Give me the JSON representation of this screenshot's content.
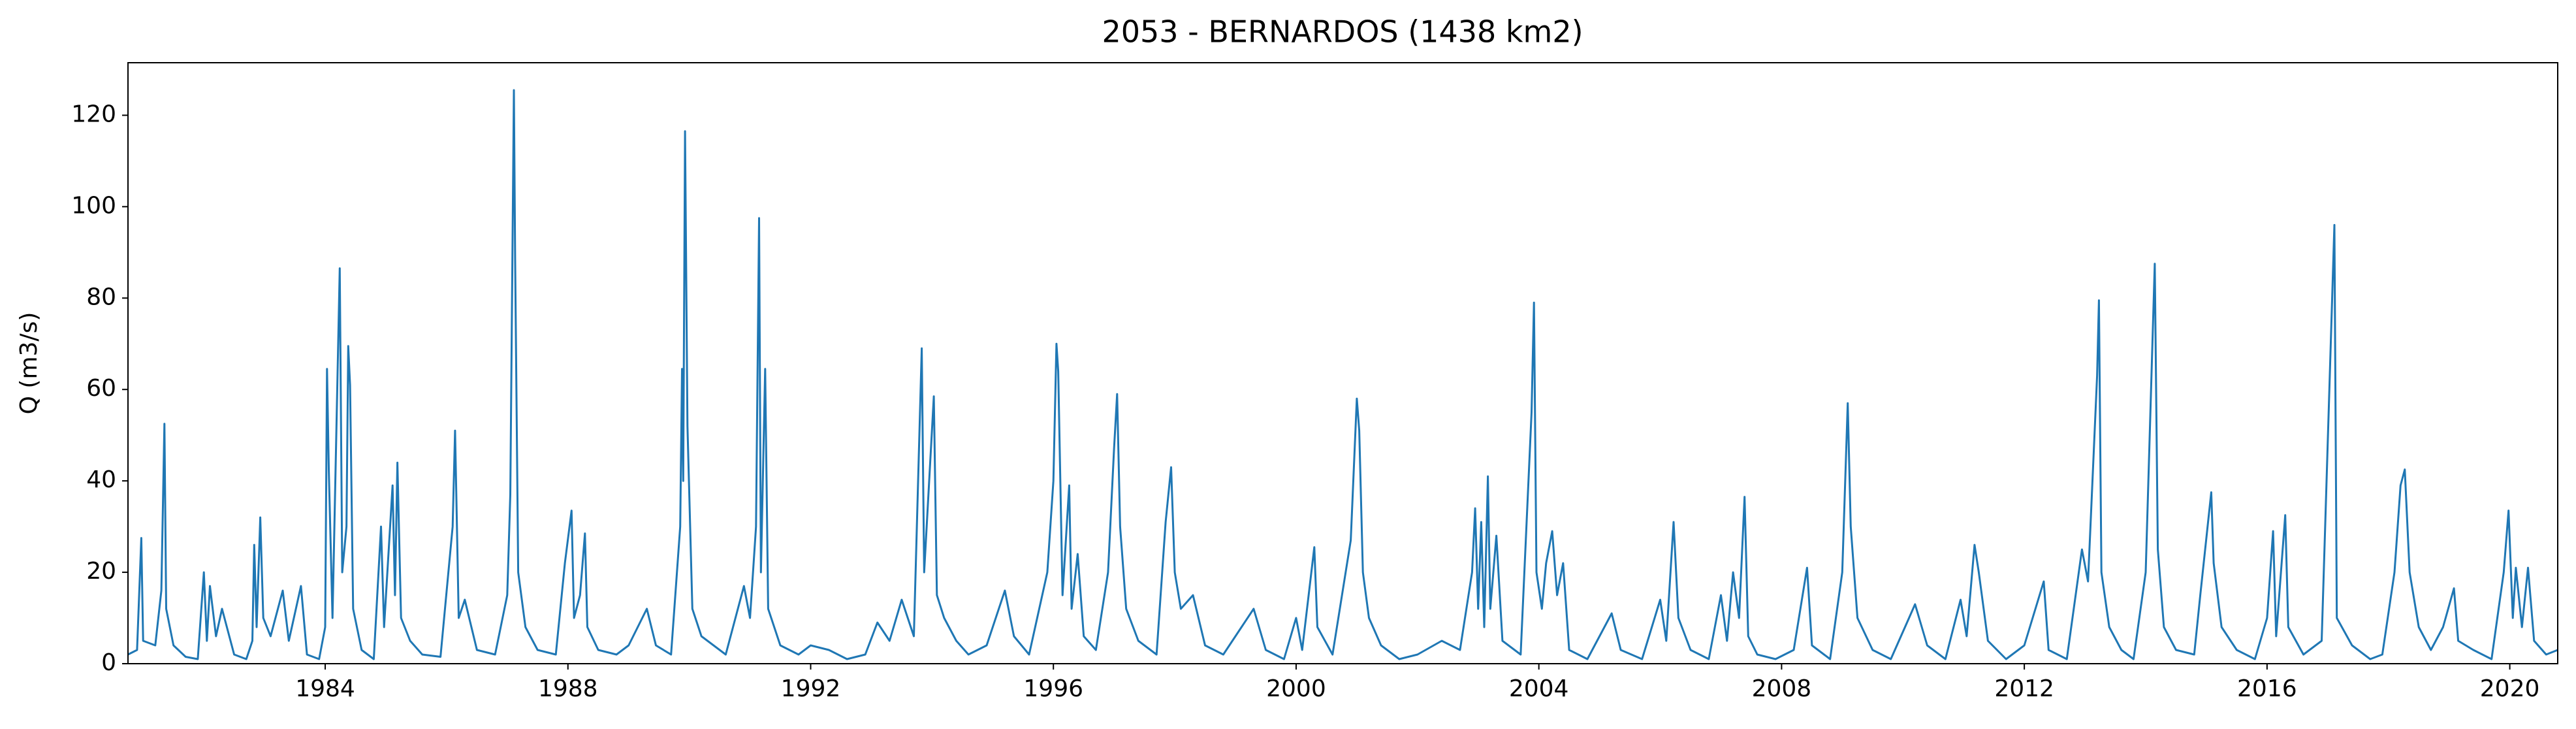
{
  "chart_data": {
    "type": "line",
    "title": "2053 - BERNARDOS (1438 km2)",
    "y_label": "Q (m3/s)",
    "xlim": [
      1980.75,
      2020.79
    ],
    "ylim": [
      0,
      131.5
    ],
    "xticks": [
      1984,
      1988,
      1992,
      1996,
      2000,
      2004,
      2008,
      2012,
      2016,
      2020
    ],
    "yticks": [
      0,
      20,
      40,
      60,
      80,
      100,
      120
    ],
    "series": [
      {
        "color": "#1f77b4",
        "x": [
          1980.75,
          1980.9,
          1980.97,
          1981.0,
          1981.2,
          1981.3,
          1981.35,
          1981.38,
          1981.5,
          1981.7,
          1981.9,
          1982.0,
          1982.05,
          1982.1,
          1982.2,
          1982.3,
          1982.5,
          1982.7,
          1982.8,
          1982.83,
          1982.87,
          1982.93,
          1982.98,
          1983.1,
          1983.3,
          1983.4,
          1983.6,
          1983.7,
          1983.9,
          1984.0,
          1984.03,
          1984.06,
          1984.12,
          1984.24,
          1984.28,
          1984.35,
          1984.38,
          1984.41,
          1984.46,
          1984.6,
          1984.8,
          1984.92,
          1984.97,
          1985.11,
          1985.15,
          1985.19,
          1985.25,
          1985.4,
          1985.6,
          1985.9,
          1986.1,
          1986.14,
          1986.2,
          1986.3,
          1986.5,
          1986.8,
          1987.0,
          1987.05,
          1987.11,
          1987.13,
          1987.18,
          1987.3,
          1987.5,
          1987.8,
          1987.95,
          1988.06,
          1988.1,
          1988.2,
          1988.28,
          1988.32,
          1988.5,
          1988.8,
          1989.0,
          1989.3,
          1989.45,
          1989.7,
          1989.85,
          1989.88,
          1989.9,
          1989.93,
          1989.97,
          1990.05,
          1990.2,
          1990.4,
          1990.6,
          1990.9,
          1991.0,
          1991.1,
          1991.15,
          1991.18,
          1991.25,
          1991.3,
          1991.5,
          1991.8,
          1992.0,
          1992.3,
          1992.6,
          1992.9,
          1993.1,
          1993.3,
          1993.5,
          1993.7,
          1993.83,
          1993.87,
          1994.03,
          1994.08,
          1994.2,
          1994.4,
          1994.6,
          1994.9,
          1995.2,
          1995.35,
          1995.6,
          1995.9,
          1996.0,
          1996.05,
          1996.08,
          1996.15,
          1996.26,
          1996.3,
          1996.4,
          1996.5,
          1996.7,
          1996.9,
          1997.0,
          1997.05,
          1997.1,
          1997.2,
          1997.4,
          1997.7,
          1997.85,
          1997.94,
          1998.0,
          1998.1,
          1998.3,
          1998.5,
          1998.8,
          1999.1,
          1999.3,
          1999.5,
          1999.8,
          2000.0,
          2000.1,
          2000.3,
          2000.35,
          2000.6,
          2000.9,
          2001.0,
          2001.04,
          2001.1,
          2001.2,
          2001.4,
          2001.7,
          2002.0,
          2002.4,
          2002.7,
          2002.9,
          2002.95,
          2003.0,
          2003.05,
          2003.1,
          2003.16,
          2003.2,
          2003.3,
          2003.4,
          2003.7,
          2003.88,
          2003.92,
          2003.96,
          2004.05,
          2004.12,
          2004.22,
          2004.3,
          2004.4,
          2004.5,
          2004.8,
          2005.2,
          2005.35,
          2005.7,
          2006.0,
          2006.1,
          2006.22,
          2006.3,
          2006.5,
          2006.8,
          2007.0,
          2007.1,
          2007.2,
          2007.3,
          2007.39,
          2007.45,
          2007.6,
          2007.9,
          2008.2,
          2008.42,
          2008.5,
          2008.8,
          2009.0,
          2009.09,
          2009.14,
          2009.25,
          2009.5,
          2009.8,
          2010.1,
          2010.2,
          2010.4,
          2010.7,
          2010.95,
          2011.05,
          2011.18,
          2011.25,
          2011.4,
          2011.7,
          2012.0,
          2012.32,
          2012.4,
          2012.7,
          2012.95,
          2013.05,
          2013.2,
          2013.23,
          2013.27,
          2013.4,
          2013.6,
          2013.8,
          2014.0,
          2014.15,
          2014.2,
          2014.3,
          2014.5,
          2014.8,
          2014.9,
          2015.08,
          2015.12,
          2015.25,
          2015.5,
          2015.8,
          2016.0,
          2016.1,
          2016.15,
          2016.3,
          2016.35,
          2016.6,
          2016.9,
          2017.11,
          2017.15,
          2017.4,
          2017.7,
          2017.9,
          2018.1,
          2018.2,
          2018.27,
          2018.35,
          2018.5,
          2018.7,
          2018.9,
          2019.08,
          2019.15,
          2019.4,
          2019.7,
          2019.9,
          2019.98,
          2020.05,
          2020.1,
          2020.2,
          2020.3,
          2020.4,
          2020.6,
          2020.79
        ],
        "values": [
          2,
          3,
          27.5,
          5,
          4,
          16,
          52.5,
          12,
          4,
          1.5,
          1,
          20,
          5,
          17,
          6,
          12,
          2,
          1,
          5,
          26,
          8,
          32,
          10,
          6,
          16,
          5,
          17,
          2,
          1,
          8,
          64.5,
          42,
          10,
          86.5,
          20,
          30,
          69.5,
          61,
          12,
          3,
          1,
          30,
          8,
          39,
          15,
          44,
          10,
          5,
          2,
          1.5,
          30,
          51,
          10,
          14,
          3,
          2,
          15,
          37,
          125.5,
          88.5,
          20,
          8,
          3,
          2,
          22,
          33.5,
          10,
          15,
          28.5,
          8,
          3,
          2,
          4,
          12,
          4,
          2,
          30,
          64.5,
          40,
          116.5,
          52,
          12,
          6,
          4,
          2,
          17,
          10,
          30,
          97.5,
          20,
          64.5,
          12,
          4,
          2,
          4,
          3,
          1,
          2,
          9,
          5,
          14,
          6,
          69,
          20,
          58.5,
          15,
          10,
          5,
          2,
          4,
          16,
          6,
          2,
          20,
          40,
          70,
          64,
          15,
          39,
          12,
          24,
          6,
          3,
          20,
          47,
          59,
          30,
          12,
          5,
          2,
          31,
          43,
          20,
          12,
          15,
          4,
          2,
          8,
          12,
          3,
          1,
          10,
          3,
          25.5,
          8,
          2,
          27,
          58,
          51,
          20,
          10,
          4,
          1,
          2,
          5,
          3,
          20,
          34,
          12,
          31,
          8,
          41,
          12,
          28,
          5,
          2,
          55,
          79,
          20,
          12,
          22,
          29,
          15,
          22,
          3,
          1,
          11,
          3,
          1,
          14,
          5,
          31,
          10,
          3,
          1,
          15,
          5,
          20,
          10,
          36.5,
          6,
          2,
          1,
          3,
          21,
          4,
          1,
          20,
          57,
          30,
          10,
          3,
          1,
          10,
          13,
          4,
          1,
          14,
          6,
          26,
          20,
          5,
          1,
          4,
          18,
          3,
          1,
          25,
          18,
          63,
          79.5,
          20,
          8,
          3,
          1,
          20,
          87.5,
          25,
          8,
          3,
          2,
          15,
          37.5,
          22,
          8,
          3,
          1,
          10,
          29,
          6,
          32.5,
          8,
          2,
          5,
          96,
          10,
          4,
          1,
          2,
          20,
          39,
          42.5,
          20,
          8,
          3,
          8,
          16.5,
          5,
          3,
          1,
          20,
          33.5,
          10,
          21,
          8,
          21,
          5,
          2,
          3
        ]
      }
    ]
  }
}
